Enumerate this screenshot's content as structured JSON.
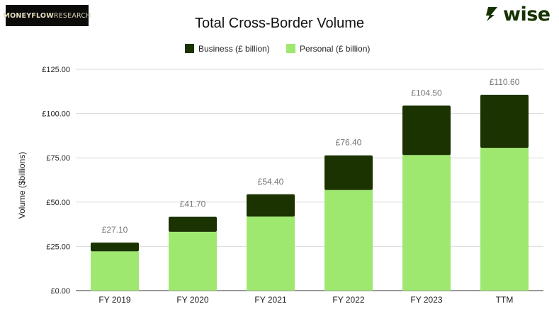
{
  "logo_left": {
    "bold": "MONEYFLOW",
    "regular": " RESEARCH"
  },
  "logo_right": {
    "text": "wise",
    "color": "#163300"
  },
  "colors": {
    "business": "#1a3300",
    "personal": "#9fe870",
    "grid": "#d9d9d9",
    "label": "#777777"
  },
  "chart_data": {
    "type": "bar",
    "stacked": true,
    "title": "Total Cross-Border Volume",
    "xlabel": "",
    "ylabel": "Volume ($billions)",
    "categories": [
      "FY 2019",
      "FY 2020",
      "FY 2021",
      "FY 2022",
      "FY 2023",
      "TTM"
    ],
    "series": [
      {
        "name": "Business (£ billion)",
        "values": [
          4.9,
          8.5,
          12.6,
          19.6,
          27.9,
          30.0
        ]
      },
      {
        "name": "Personal (£ billion)",
        "values": [
          22.2,
          33.2,
          41.8,
          56.8,
          76.6,
          80.6
        ]
      }
    ],
    "totals": [
      27.1,
      41.7,
      54.4,
      76.4,
      104.5,
      110.6
    ],
    "total_labels": [
      "£27.10",
      "£41.70",
      "£54.40",
      "£76.40",
      "£104.50",
      "£110.60"
    ],
    "ylim": [
      0,
      125
    ],
    "yticks": [
      0,
      25,
      50,
      75,
      100,
      125
    ],
    "ytick_labels": [
      "£0.00",
      "£25.00",
      "£50.00",
      "£75.00",
      "£100.00",
      "£125.00"
    ],
    "grid": true,
    "legend_position": "top"
  }
}
